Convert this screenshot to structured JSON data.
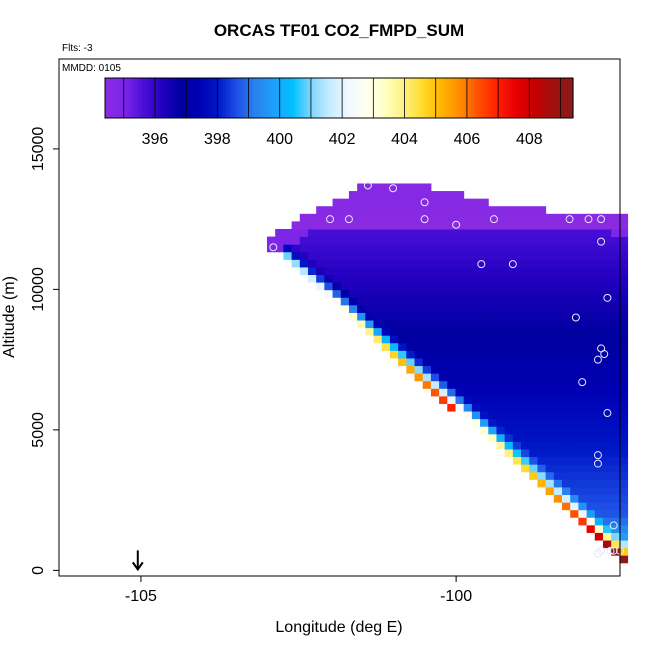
{
  "chart_data": {
    "type": "heatmap",
    "title": "ORCAS TF01 CO2_FMPD_SUM",
    "subtitle_flights": "Flts: -3",
    "subtitle_date": "MMDD: 0105",
    "xlabel": "Longitude (deg E)",
    "ylabel": "Altitude (m)",
    "xlim": [
      -106.3,
      -97.4
    ],
    "ylim": [
      -200,
      18200
    ],
    "x_ticks": [
      -105,
      -100
    ],
    "x_tick_labels": [
      "-105",
      "-100"
    ],
    "y_ticks": [
      0,
      5000,
      10000,
      15000
    ],
    "y_tick_labels": [
      "0",
      "5000",
      "10000",
      "15000"
    ],
    "colorbar": {
      "range": [
        394.4,
        409.4
      ],
      "ticks": [
        396,
        398,
        400,
        402,
        404,
        406,
        408
      ],
      "tick_labels": [
        "396",
        "398",
        "400",
        "402",
        "404",
        "406",
        "408"
      ],
      "colors": [
        "#8a2be2",
        "#7b25e8",
        "#4a0fd8",
        "#2200c0",
        "#0000a0",
        "#0000b4",
        "#0018c8",
        "#1e50e6",
        "#2882f0",
        "#1ea0fa",
        "#00c0ff",
        "#7fd6ff",
        "#c8ecff",
        "#f0f8ff",
        "#fffff0",
        "#ffffc0",
        "#fff080",
        "#ffdc2a",
        "#ffb400",
        "#ff8c00",
        "#ff5000",
        "#ff2000",
        "#e60000",
        "#c80000",
        "#a01010",
        "#8b1a1a"
      ]
    },
    "curtain": {
      "x_range": [
        -103.0,
        -97.4
      ],
      "top_left_alt": 11600,
      "bottom_right_alt": 500,
      "top_profile": [
        [
          -103.0,
          11800
        ],
        [
          -102.4,
          12600
        ],
        [
          -101.4,
          13800
        ],
        [
          -100.2,
          13600
        ],
        [
          -99.5,
          13100
        ],
        [
          -98.5,
          12800
        ],
        [
          -97.4,
          12700
        ]
      ]
    },
    "sample_points": [
      {
        "lon": -102.9,
        "alt": 11500
      },
      {
        "lon": -102.0,
        "alt": 12500
      },
      {
        "lon": -101.7,
        "alt": 12500
      },
      {
        "lon": -101.4,
        "alt": 13700
      },
      {
        "lon": -101.0,
        "alt": 13600
      },
      {
        "lon": -100.5,
        "alt": 13100
      },
      {
        "lon": -100.5,
        "alt": 12500
      },
      {
        "lon": -100.0,
        "alt": 12300
      },
      {
        "lon": -99.6,
        "alt": 10900
      },
      {
        "lon": -99.4,
        "alt": 12500
      },
      {
        "lon": -99.1,
        "alt": 10900
      },
      {
        "lon": -98.2,
        "alt": 12500
      },
      {
        "lon": -98.1,
        "alt": 9000
      },
      {
        "lon": -97.9,
        "alt": 12500
      },
      {
        "lon": -97.7,
        "alt": 12500
      },
      {
        "lon": -97.7,
        "alt": 11700
      },
      {
        "lon": -97.6,
        "alt": 9700
      },
      {
        "lon": -98.0,
        "alt": 6700
      },
      {
        "lon": -97.7,
        "alt": 7900
      },
      {
        "lon": -97.65,
        "alt": 7700
      },
      {
        "lon": -97.75,
        "alt": 7500
      },
      {
        "lon": -97.6,
        "alt": 5600
      },
      {
        "lon": -97.75,
        "alt": 4100
      },
      {
        "lon": -97.75,
        "alt": 3800
      },
      {
        "lon": -97.5,
        "alt": 1600
      },
      {
        "lon": -97.7,
        "alt": 700
      },
      {
        "lon": -97.55,
        "alt": 700
      },
      {
        "lon": -97.5,
        "alt": 700
      },
      {
        "lon": -97.4,
        "alt": 700
      },
      {
        "lon": -97.75,
        "alt": 600
      }
    ],
    "marker": {
      "lon": -105.05,
      "alt": 0,
      "glyph": "arrow-down"
    }
  }
}
